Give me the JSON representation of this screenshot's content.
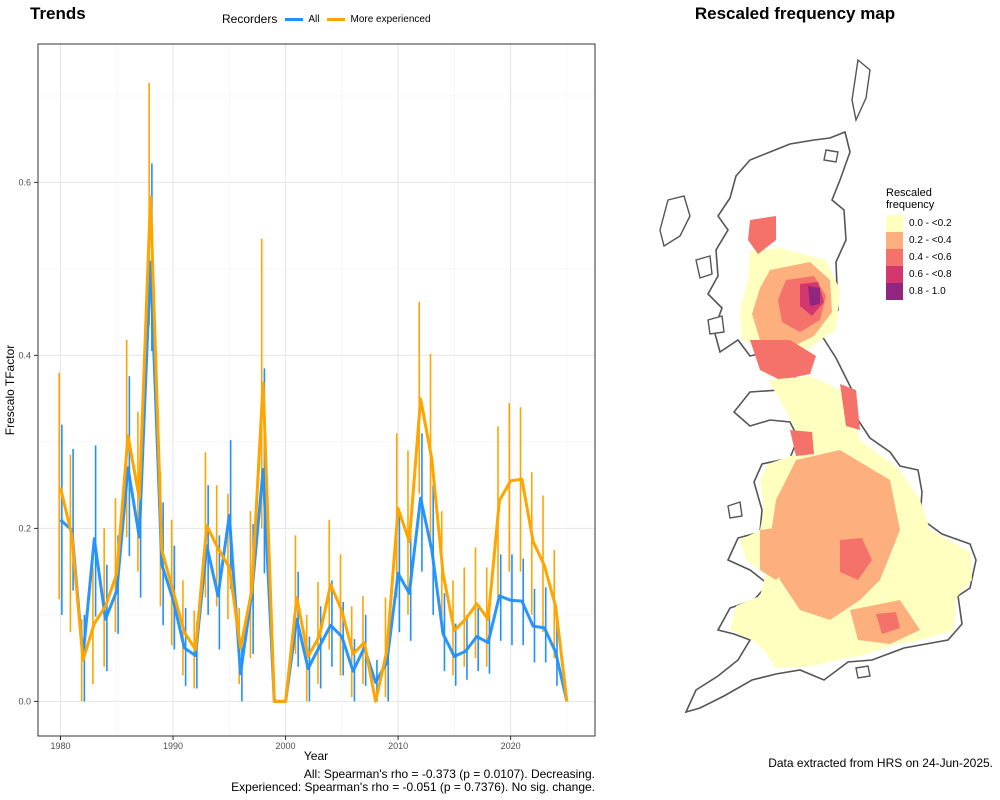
{
  "left_title": "Trends",
  "map_title": "Rescaled frequency map",
  "legend": {
    "title": "Recorders",
    "items": [
      {
        "label": "All",
        "color": "#1E90FF"
      },
      {
        "label": "More experienced",
        "color": "#FFA500"
      }
    ]
  },
  "footnotes": {
    "all": "All: Spearman's rho = -0.373 (p = 0.0107). Decreasing.",
    "experienced": "Experienced: Spearman's rho = -0.051 (p = 0.7376). No sig. change."
  },
  "map_legend": {
    "title_line1": "Rescaled",
    "title_line2": "frequency",
    "bins": [
      {
        "label": "0.0 - <0.2",
        "color": "#FFFFC0"
      },
      {
        "label": "0.2 - <0.4",
        "color": "#FDB07E"
      },
      {
        "label": "0.4 - <0.6",
        "color": "#F4726A"
      },
      {
        "label": "0.6 - <0.8",
        "color": "#D2376D"
      },
      {
        "label": "0.8 - 1.0",
        "color": "#902680"
      }
    ]
  },
  "map_credit": "Data extracted from HRS on 24-Jun-2025.",
  "chart_data": {
    "type": "line",
    "xlabel": "Year",
    "ylabel": "Frescalo TFactor",
    "xlim": [
      1978.0,
      2027.5
    ],
    "ylim": [
      -0.04,
      0.76
    ],
    "x_ticks": [
      1980,
      1990,
      2000,
      2010,
      2020
    ],
    "y_ticks": [
      0.0,
      0.2,
      0.4,
      0.6
    ],
    "y_tick_labels": [
      "0.0",
      "0.2",
      "0.4",
      "0.6"
    ],
    "grid": true,
    "legend_position": "top",
    "x": [
      1980,
      1981,
      1982,
      1983,
      1984,
      1985,
      1986,
      1987,
      1988,
      1989,
      1990,
      1991,
      1992,
      1993,
      1994,
      1995,
      1996,
      1997,
      1998,
      1999,
      2000,
      2001,
      2002,
      2003,
      2004,
      2005,
      2006,
      2007,
      2008,
      2009,
      2010,
      2011,
      2012,
      2013,
      2014,
      2015,
      2016,
      2017,
      2018,
      2019,
      2020,
      2021,
      2022,
      2023,
      2024,
      2025
    ],
    "series": [
      {
        "name": "All",
        "color": "#1E90FF",
        "values": [
          0.21,
          0.198,
          0.052,
          0.188,
          0.095,
          0.128,
          0.27,
          0.19,
          0.508,
          0.158,
          0.118,
          0.062,
          0.053,
          0.18,
          0.122,
          0.215,
          0.032,
          0.125,
          0.268,
          0.0,
          0.0,
          0.095,
          0.038,
          0.063,
          0.088,
          0.075,
          0.035,
          0.062,
          0.022,
          0.045,
          0.148,
          0.125,
          0.235,
          0.175,
          0.078,
          0.052,
          0.058,
          0.075,
          0.068,
          0.122,
          0.117,
          0.116,
          0.087,
          0.085,
          0.057,
          0.0
        ],
        "lower": [
          0.1,
          0.128,
          0.0,
          0.098,
          0.035,
          0.078,
          0.168,
          0.12,
          0.405,
          0.088,
          0.06,
          0.018,
          0.015,
          0.1,
          0.06,
          0.13,
          0.0,
          0.055,
          0.148,
          0.0,
          0.0,
          0.04,
          0.0,
          0.015,
          0.04,
          0.03,
          0.0,
          0.018,
          0.0,
          0.0,
          0.08,
          0.07,
          0.15,
          0.1,
          0.035,
          0.018,
          0.025,
          0.035,
          0.032,
          0.07,
          0.065,
          0.065,
          0.045,
          0.045,
          0.018,
          0.0
        ],
        "upper": [
          0.32,
          0.292,
          0.1,
          0.296,
          0.158,
          0.192,
          0.376,
          0.27,
          0.622,
          0.23,
          0.18,
          0.108,
          0.092,
          0.25,
          0.192,
          0.302,
          0.07,
          0.205,
          0.385,
          0.0,
          0.0,
          0.15,
          0.075,
          0.11,
          0.14,
          0.115,
          0.072,
          0.1,
          0.048,
          0.082,
          0.22,
          0.192,
          0.31,
          0.25,
          0.125,
          0.09,
          0.1,
          0.112,
          0.108,
          0.17,
          0.17,
          0.165,
          0.13,
          0.132,
          0.098,
          0.0
        ]
      },
      {
        "name": "More experienced",
        "color": "#FFA500",
        "values": [
          0.247,
          0.192,
          0.048,
          0.09,
          0.11,
          0.148,
          0.307,
          0.235,
          0.583,
          0.175,
          0.128,
          0.08,
          0.06,
          0.203,
          0.177,
          0.155,
          0.062,
          0.128,
          0.368,
          0.0,
          0.0,
          0.12,
          0.052,
          0.075,
          0.135,
          0.105,
          0.055,
          0.068,
          0.0,
          0.058,
          0.223,
          0.185,
          0.35,
          0.28,
          0.147,
          0.082,
          0.095,
          0.113,
          0.095,
          0.232,
          0.255,
          0.257,
          0.185,
          0.157,
          0.11,
          0.0
        ],
        "lower": [
          0.118,
          0.08,
          0.0,
          0.02,
          0.04,
          0.08,
          0.19,
          0.15,
          0.435,
          0.11,
          0.065,
          0.03,
          0.015,
          0.12,
          0.11,
          0.095,
          0.02,
          0.05,
          0.2,
          0.0,
          0.0,
          0.055,
          0.0,
          0.02,
          0.06,
          0.03,
          0.005,
          0.02,
          0.0,
          0.005,
          0.12,
          0.1,
          0.24,
          0.18,
          0.08,
          0.03,
          0.04,
          0.05,
          0.04,
          0.12,
          0.15,
          0.15,
          0.1,
          0.08,
          0.05,
          0.0
        ],
        "upper": [
          0.38,
          0.285,
          0.095,
          0.155,
          0.2,
          0.235,
          0.418,
          0.335,
          0.715,
          0.265,
          0.21,
          0.14,
          0.105,
          0.288,
          0.25,
          0.24,
          0.108,
          0.22,
          0.535,
          0.0,
          0.0,
          0.192,
          0.1,
          0.138,
          0.21,
          0.17,
          0.11,
          0.122,
          0.0,
          0.12,
          0.31,
          0.29,
          0.462,
          0.402,
          0.22,
          0.14,
          0.155,
          0.178,
          0.155,
          0.318,
          0.345,
          0.34,
          0.265,
          0.238,
          0.175,
          0.0
        ]
      }
    ]
  }
}
